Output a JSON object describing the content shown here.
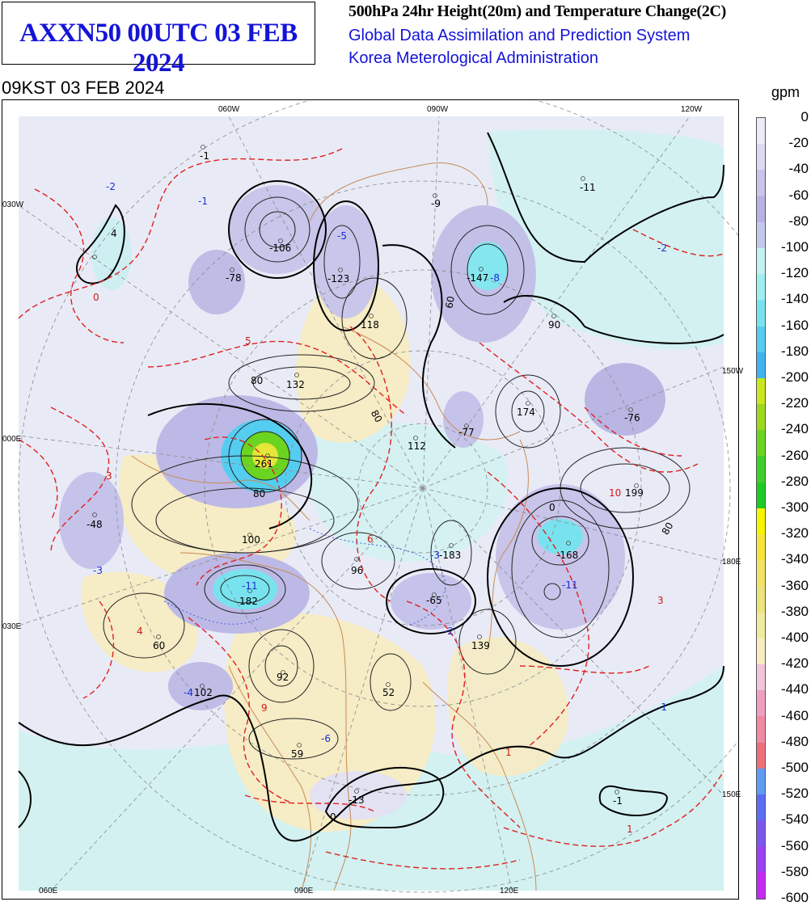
{
  "header": {
    "main_title": "AXXN50 00UTC 03 FEB 2024",
    "line1": "500hPa 24hr Height(20m) and Temperature Change(2C)",
    "line2": "Global Data Assimilation and Prediction System",
    "line3": "Korea Meterological Administration",
    "valid_time": "09KST 03 FEB 2024"
  },
  "colorbar": {
    "unit": "gpm",
    "labels": [
      "0",
      "-20",
      "-40",
      "-60",
      "-80",
      "-100",
      "-120",
      "-140",
      "-160",
      "-180",
      "-200",
      "-220",
      "-240",
      "-260",
      "-280",
      "-300",
      "-320",
      "-340",
      "-360",
      "-380",
      "-400",
      "-420",
      "-440",
      "-460",
      "-480",
      "-500",
      "-520",
      "-540",
      "-560",
      "-580",
      "-600"
    ],
    "colors": [
      "#ecebf6",
      "#dcdaf0",
      "#c8c4ea",
      "#b7b2e4",
      "#c4c8ec",
      "#c2f2f2",
      "#9feef0",
      "#78e3ee",
      "#55cdf0",
      "#3fb4ee",
      "#c9e61e",
      "#9dd81c",
      "#6bd421",
      "#3fcf2a",
      "#1ccb24",
      "#f6f602",
      "#f6e53a",
      "#f2e366",
      "#ece47c",
      "#f1eb9d",
      "#f8ecc0",
      "#f1c4da",
      "#ee9fbf",
      "#ef8aa2",
      "#ed6f7a",
      "#5f9bf3",
      "#5b6df2",
      "#7b57ee",
      "#9d3ff2",
      "#c42bf2"
    ]
  },
  "axis_labels": {
    "top": [
      "060W",
      "090W",
      "120W"
    ],
    "bottom": [
      "060E",
      "090E",
      "120E"
    ],
    "left": [
      "030W",
      "000E",
      "030E"
    ],
    "right": [
      "150W",
      "180E",
      "150E"
    ]
  },
  "height_labels": [
    "-1",
    "-9",
    "-11",
    "4",
    "-78",
    "-106",
    "-123",
    "-147",
    "118",
    "90",
    "132",
    "174",
    "-76",
    "112",
    "-77",
    "261",
    "199",
    "-48",
    "100",
    "96",
    "-183",
    "-168",
    "182",
    "-65",
    "60",
    "139",
    "102",
    "92",
    "52",
    "59",
    "-13",
    "-1"
  ],
  "temp_labels": [
    "-2",
    "-1",
    "0",
    "3",
    "5",
    "-5",
    "-8",
    "-2",
    "4",
    "10",
    "-3",
    "-11",
    "6",
    "-3",
    "-2",
    "-4",
    "9",
    "-6",
    "1",
    "-11",
    "3",
    "-1",
    "1"
  ],
  "contour_labels": [
    "80",
    "60",
    "80",
    "80",
    "0",
    "80",
    "0"
  ]
}
